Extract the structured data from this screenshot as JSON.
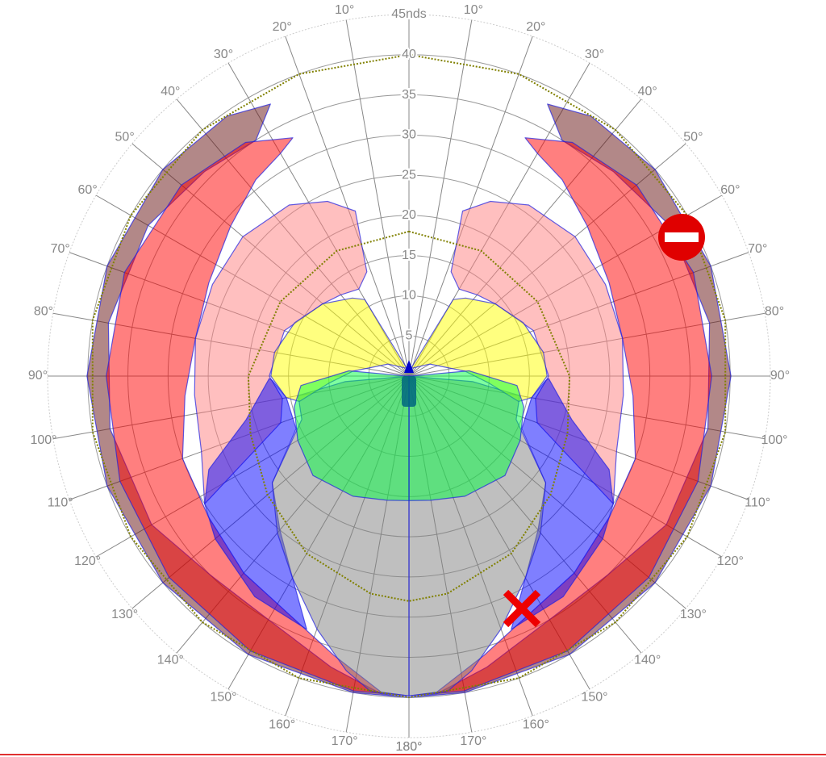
{
  "chart_data": {
    "type": "polar",
    "symmetric": true,
    "xlim": [
      0,
      180
    ],
    "ylim": [
      0,
      45
    ],
    "xticks": [
      {
        "value": 10,
        "label": "10°"
      },
      {
        "value": 20,
        "label": "20°"
      },
      {
        "value": 30,
        "label": "30°"
      },
      {
        "value": 40,
        "label": "40°"
      },
      {
        "value": 50,
        "label": "50°"
      },
      {
        "value": 60,
        "label": "60°"
      },
      {
        "value": 70,
        "label": "70°"
      },
      {
        "value": 80,
        "label": "80°"
      },
      {
        "value": 90,
        "label": "90°"
      },
      {
        "value": 100,
        "label": "100°"
      },
      {
        "value": 110,
        "label": "110°"
      },
      {
        "value": 120,
        "label": "120°"
      },
      {
        "value": 130,
        "label": "130°"
      },
      {
        "value": 140,
        "label": "140°"
      },
      {
        "value": 150,
        "label": "150°"
      },
      {
        "value": 160,
        "label": "160°"
      },
      {
        "value": 170,
        "label": "170°"
      },
      {
        "value": 180,
        "label": "180°"
      }
    ],
    "yticks": [
      5,
      10,
      15,
      20,
      25,
      30,
      35,
      40,
      {
        "value": 45,
        "label": "45nds"
      }
    ],
    "grid": true,
    "series": [
      {
        "color": "#661111",
        "style": "area",
        "x": [
          27,
          35,
          50,
          70,
          90,
          110,
          130,
          150,
          170,
          180,
          175,
          165,
          150,
          135,
          120,
          100,
          80,
          60,
          45,
          33
        ],
        "values": [
          38,
          39.5,
          40,
          40,
          40.1,
          40,
          40,
          40,
          40,
          40,
          39.7,
          37.5,
          35,
          35,
          37,
          37.8,
          38,
          37.5,
          36,
          35
        ]
      },
      {
        "color": "#ff0000",
        "style": "area",
        "x": [
          26,
          35,
          50,
          70,
          90,
          110,
          130,
          150,
          170,
          180,
          175,
          165,
          155,
          140,
          125,
          110,
          95,
          80,
          65,
          50,
          38,
          30
        ],
        "values": [
          33,
          35.5,
          37,
          37.7,
          37.7,
          38.3,
          39,
          39.5,
          39.8,
          39.8,
          39.5,
          36,
          33.5,
          32,
          30.5,
          30,
          28,
          27,
          27.5,
          29,
          31,
          32
        ]
      },
      {
        "color": "#ff8080",
        "style": "area",
        "x": [
          18,
          25,
          35,
          50,
          65,
          80,
          95,
          110,
          122,
          110,
          100,
          90,
          70,
          50,
          40,
          30,
          22
        ],
        "values": [
          21.6,
          24,
          26,
          27,
          27,
          27,
          26.8,
          27.5,
          30,
          17,
          16,
          17.4,
          16.5,
          14,
          13.2,
          12.5,
          14
        ]
      },
      {
        "color": "#0000ff",
        "style": "area",
        "x": [
          91,
          105,
          115,
          122,
          130,
          145,
          158,
          150,
          140,
          128,
          115,
          100,
          92
        ],
        "values": [
          17.4,
          21,
          27.5,
          30,
          31.5,
          33.5,
          34,
          29,
          25,
          21.6,
          15.5,
          15.5,
          17
        ]
      },
      {
        "color": "#808080",
        "style": "area",
        "x": [
          95,
          100,
          112,
          128,
          140,
          150,
          160,
          168,
          173,
          180,
          180
        ],
        "values": [
          8,
          14,
          14.4,
          21.6,
          25.5,
          29,
          33.5,
          37.5,
          39.5,
          39.8,
          0
        ]
      },
      {
        "color": "#ffff00",
        "style": "area",
        "x": [
          15,
          30,
          36,
          50,
          65,
          80,
          90,
          100,
          103,
          95,
          85,
          60
        ],
        "values": [
          1,
          11,
          12,
          14,
          15.7,
          17,
          17.2,
          15.5,
          14,
          10,
          7,
          3
        ]
      },
      {
        "color": "#00ff40",
        "style": "area",
        "x": [
          88,
          85,
          95,
          105,
          120,
          136,
          155,
          170,
          180,
          180
        ],
        "values": [
          0.5,
          7.5,
          13.5,
          14.8,
          16,
          17.2,
          16.5,
          15.7,
          15.5,
          0
        ]
      },
      {
        "color": "#808000",
        "style": "dotted",
        "x": [
          0,
          20,
          40,
          60,
          80,
          100,
          120,
          140,
          160,
          180
        ],
        "values": [
          40,
          40,
          40,
          40,
          40,
          40,
          40,
          40,
          40,
          40
        ]
      },
      {
        "color": "#808000",
        "style": "dotted",
        "x": [
          0,
          30,
          60,
          90,
          110,
          130,
          150,
          170,
          180
        ],
        "values": [
          18,
          18,
          18.5,
          20,
          21,
          23,
          25.5,
          27.5,
          28
        ]
      }
    ]
  }
}
